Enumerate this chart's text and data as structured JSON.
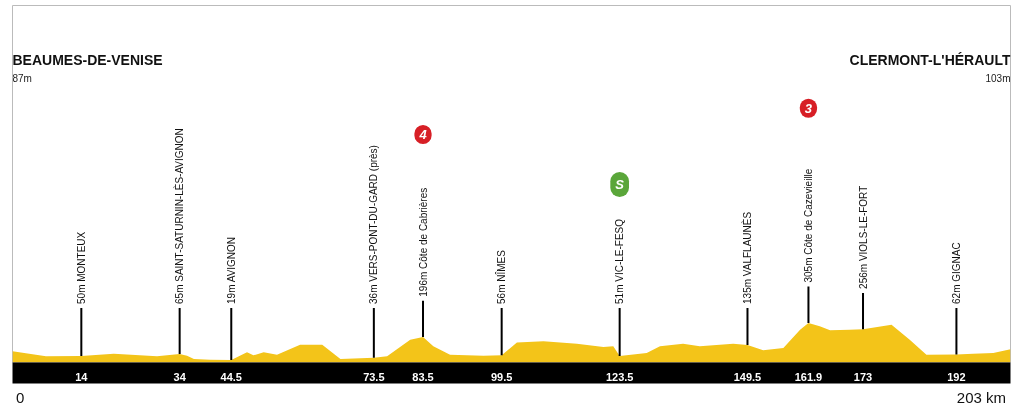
{
  "chart_data": {
    "type": "area",
    "x": [
      0,
      6.8,
      14,
      20.6,
      29.4,
      34,
      35.5,
      36.9,
      40.2,
      44.5,
      47.7,
      49,
      51.1,
      53.8,
      58.5,
      63,
      66.7,
      73.5,
      76.2,
      80.9,
      83.5,
      85.6,
      89,
      95.8,
      99.5,
      102.6,
      108,
      114.8,
      120.2,
      122.2,
      123.5,
      129,
      131.7,
      136.4,
      139.8,
      146.6,
      149.5,
      152.7,
      156.8,
      160.2,
      161.9,
      164.2,
      166.3,
      170.3,
      173,
      178.8,
      182.5,
      185.9,
      192,
      195.4,
      199.5,
      203
    ],
    "series": [
      {
        "color": "#f3c419",
        "values": [
          87,
          48,
          50,
          68,
          48,
          65,
          52,
          27,
          22,
          19,
          79,
          55,
          79,
          60,
          137,
          137,
          27,
          36,
          48,
          175,
          196,
          125,
          60,
          52,
          56,
          155,
          163,
          145,
          119,
          125,
          51,
          73,
          125,
          145,
          125,
          145,
          135,
          94,
          112,
          253,
          305,
          279,
          248,
          253,
          256,
          291,
          175,
          60,
          62,
          68,
          73,
          103
        ],
        "value_labels": [
          null,
          null,
          "50m MONTEUX",
          null,
          null,
          "65m SAINT-SATURNIN-LÈS-AVIGNON",
          null,
          null,
          null,
          "19m AVIGNON",
          null,
          null,
          null,
          null,
          null,
          null,
          null,
          "36m VERS-PONT-DU-GARD (près)",
          null,
          null,
          "196m Côte de Cabrières",
          null,
          null,
          null,
          "56m NÎMES",
          null,
          null,
          null,
          null,
          null,
          "51m VIC-LE-FESQ",
          null,
          null,
          null,
          null,
          null,
          "135m VALFLAUNÈS",
          null,
          null,
          null,
          "305m Côte de Cazevieille",
          null,
          null,
          null,
          "256m VIOLS-LE-FORT",
          null,
          null,
          null,
          "62m GIGNAC",
          null,
          null,
          null
        ]
      }
    ],
    "xlim": [
      0,
      203
    ],
    "xticks": [
      14,
      34,
      44.5,
      73.5,
      83.5,
      99.5,
      123.5,
      149.5,
      161.9,
      173,
      192
    ],
    "ylim": [
      0,
      2750
    ],
    "tick_labels": "x",
    "annotations": [
      "BEAUMES-DE-VENISE",
      "CLERMONT-L'HÉRAULT",
      "87m",
      "103m",
      "4",
      "S",
      "3",
      "0",
      "203 km"
    ]
  }
}
